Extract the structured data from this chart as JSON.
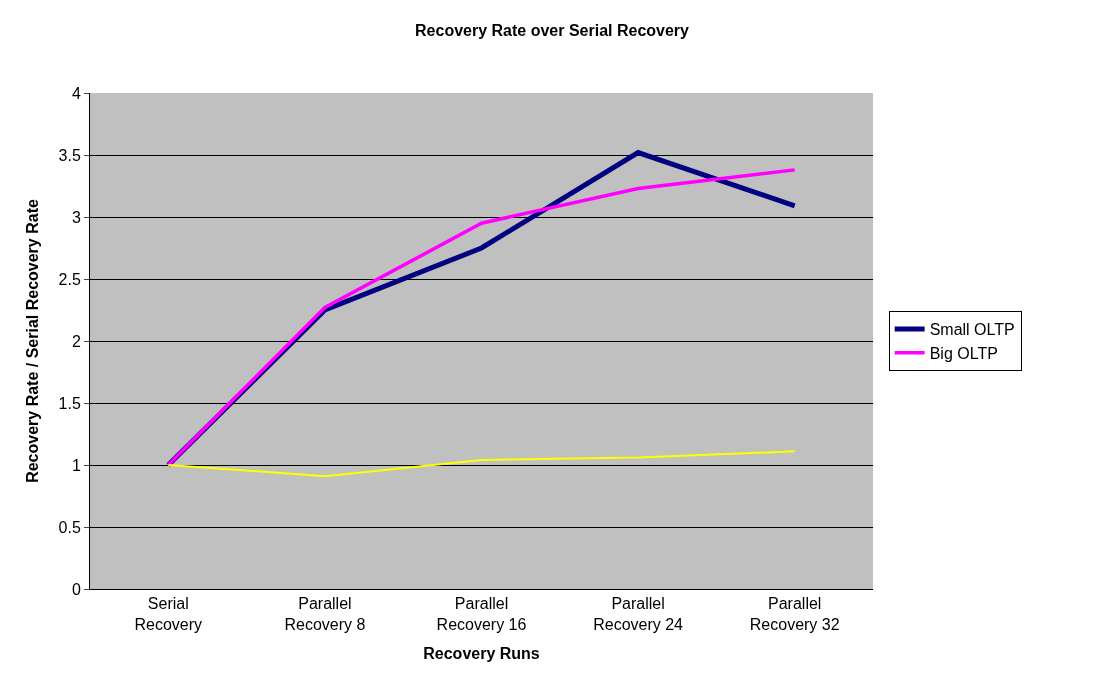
{
  "chart_data": {
    "type": "line",
    "title": "Recovery Rate over Serial Recovery",
    "xlabel": "Recovery Runs",
    "ylabel": "Recovery Rate / Serial Recovery Rate",
    "categories": [
      "Serial Recovery",
      "Parallel Recovery 8",
      "Parallel Recovery 16",
      "Parallel Recovery 24",
      "Parallel Recovery 32"
    ],
    "series": [
      {
        "name": "Small OLTP",
        "color": "#000080",
        "values": [
          1,
          2.25,
          2.75,
          3.52,
          3.09
        ]
      },
      {
        "name": "Big OLTP",
        "color": "#ff00ff",
        "values": [
          1,
          2.27,
          2.95,
          3.23,
          3.38
        ]
      },
      {
        "color": "#ffff00",
        "values": [
          1,
          0.91,
          1.04,
          1.06,
          1.11
        ]
      }
    ],
    "ylim": [
      0,
      4
    ],
    "yticks": [
      0,
      0.5,
      1,
      1.5,
      2,
      2.5,
      3,
      3.5,
      4
    ],
    "grid": "y",
    "legend": "right",
    "marker": "none",
    "line_style": "solid"
  }
}
